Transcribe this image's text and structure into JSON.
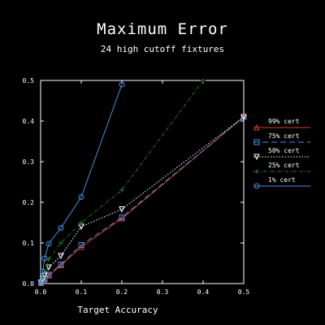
{
  "chart_data": {
    "type": "line",
    "title": "Maximum Error",
    "subtitle": "24 high cutoff fixtures",
    "xlabel": "Target Accuracy",
    "ylabel": "",
    "xlim": [
      0,
      0.5
    ],
    "ylim": [
      0,
      0.5
    ],
    "xticks": [
      0.0,
      0.1,
      0.2,
      0.3,
      0.4,
      0.5
    ],
    "yticks": [
      0.0,
      0.1,
      0.2,
      0.3,
      0.4,
      0.5
    ],
    "xtick_labels": [
      "0.0",
      "0.1",
      "0.2",
      "0.3",
      "0.4",
      "0.5"
    ],
    "ytick_labels": [
      "0.0",
      "0.1",
      "0.2",
      "0.3",
      "0.4",
      "0.5"
    ],
    "grid": false,
    "legend_position": "right",
    "series": [
      {
        "name": "99% cert",
        "color": "#d23a2a",
        "marker": "triangle-up",
        "dash": "solid",
        "x": [
          0.001,
          0.005,
          0.01,
          0.02,
          0.05,
          0.1,
          0.2,
          0.5
        ],
        "y": [
          0.001,
          0.005,
          0.01,
          0.02,
          0.045,
          0.09,
          0.16,
          0.41
        ]
      },
      {
        "name": "75% cert",
        "color": "#4a8de0",
        "marker": "square",
        "dash": "dashed",
        "x": [
          0.001,
          0.005,
          0.01,
          0.02,
          0.05,
          0.1,
          0.2,
          0.5
        ],
        "y": [
          0.002,
          0.006,
          0.012,
          0.022,
          0.047,
          0.095,
          0.163,
          0.41
        ]
      },
      {
        "name": "50% cert",
        "color": "#ffffff",
        "marker": "triangle-down",
        "dash": "dotted",
        "x": [
          0.001,
          0.005,
          0.01,
          0.02,
          0.05,
          0.1,
          0.2,
          0.5
        ],
        "y": [
          0.003,
          0.01,
          0.02,
          0.04,
          0.068,
          0.14,
          0.183,
          0.41
        ]
      },
      {
        "name": "25% cert",
        "color": "#2f7a2f",
        "marker": "plus",
        "dash": "dashdot",
        "x": [
          0.001,
          0.005,
          0.01,
          0.02,
          0.05,
          0.1,
          0.2,
          0.4
        ],
        "y": [
          0.004,
          0.015,
          0.03,
          0.06,
          0.1,
          0.15,
          0.23,
          0.5
        ]
      },
      {
        "name": "1% cert",
        "color": "#4a8de0",
        "marker": "circle",
        "dash": "solid",
        "x": [
          0.001,
          0.005,
          0.01,
          0.02,
          0.05,
          0.1,
          0.2
        ],
        "y": [
          0.005,
          0.03,
          0.062,
          0.098,
          0.137,
          0.213,
          0.49
        ]
      }
    ]
  }
}
